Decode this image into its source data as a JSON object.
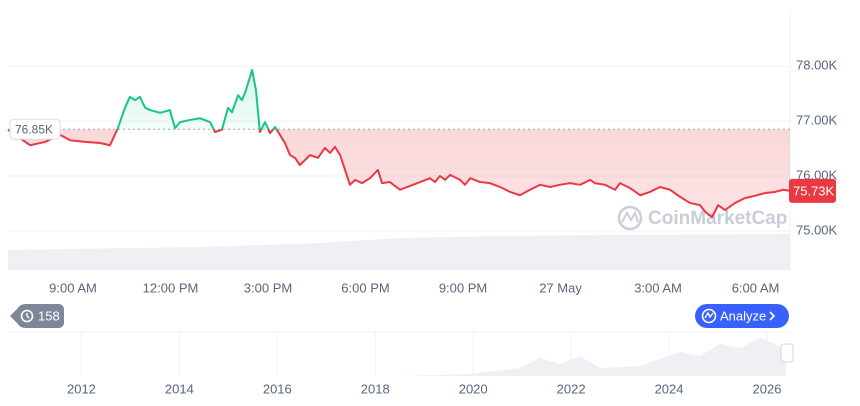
{
  "chart_data": {
    "type": "line",
    "x": [
      7.0,
      7.68,
      8.14,
      8.6,
      8.91,
      9.37,
      9.83,
      10.14,
      10.38,
      10.6,
      10.75,
      10.91,
      11.06,
      11.22,
      11.37,
      11.68,
      11.98,
      12.14,
      12.29,
      12.6,
      12.91,
      13.22,
      13.37,
      13.58,
      13.77,
      13.89,
      14.08,
      14.2,
      14.32,
      14.51,
      14.63,
      14.75,
      14.91,
      15.06,
      15.22,
      15.52,
      15.68,
      15.83,
      15.98,
      16.14,
      16.29,
      16.54,
      16.75,
      16.91,
      17.06,
      17.22,
      17.37,
      17.52,
      17.68,
      17.89,
      18.14,
      18.38,
      18.51,
      18.75,
      19.06,
      19.37,
      19.68,
      19.98,
      20.14,
      20.29,
      20.45,
      20.6,
      20.91,
      21.06,
      21.22,
      21.52,
      21.83,
      22.14,
      22.45,
      22.75,
      23.06,
      23.37,
      23.68,
      23.98,
      24.29,
      24.6,
      24.91,
      25.06,
      25.37,
      25.68,
      25.83,
      26.14,
      26.45,
      26.75,
      27.06,
      27.37,
      27.68,
      27.98,
      28.29,
      28.45,
      28.66,
      28.85,
      29.06,
      29.37,
      29.68,
      29.98,
      30.29,
      30.6,
      30.85,
      31.06
    ],
    "values": [
      76.84,
      76.56,
      76.62,
      76.75,
      76.65,
      76.62,
      76.6,
      76.56,
      76.87,
      77.24,
      77.44,
      77.38,
      77.44,
      77.24,
      77.2,
      77.15,
      77.2,
      76.87,
      76.98,
      77.02,
      77.05,
      76.98,
      76.8,
      76.84,
      77.24,
      77.16,
      77.47,
      77.38,
      77.56,
      77.93,
      77.56,
      76.8,
      76.98,
      76.78,
      76.89,
      76.6,
      76.38,
      76.33,
      76.2,
      76.29,
      76.38,
      76.33,
      76.51,
      76.42,
      76.53,
      76.38,
      76.11,
      75.84,
      75.93,
      75.87,
      75.96,
      76.11,
      75.87,
      75.89,
      75.75,
      75.82,
      75.89,
      75.96,
      75.89,
      76.0,
      75.93,
      76.02,
      75.93,
      75.84,
      75.96,
      75.89,
      75.87,
      75.8,
      75.71,
      75.65,
      75.75,
      75.84,
      75.8,
      75.84,
      75.87,
      75.84,
      75.93,
      75.87,
      75.84,
      75.75,
      75.87,
      75.78,
      75.65,
      75.71,
      75.8,
      75.75,
      75.62,
      75.51,
      75.47,
      75.35,
      75.25,
      75.47,
      75.38,
      75.51,
      75.6,
      75.64,
      75.69,
      75.71,
      75.75,
      75.73
    ],
    "color_up": "#16c784",
    "color_down": "#ea3943",
    "baseline": {
      "value": 76.85,
      "label": "76.85K"
    },
    "last_price": {
      "value": 75.73,
      "label": "75.73K"
    },
    "xlim": [
      7,
      31.06
    ],
    "xticks": [
      {
        "value": 9,
        "label": "9:00 AM"
      },
      {
        "value": 12,
        "label": "12:00 PM"
      },
      {
        "value": 15,
        "label": "3:00 PM"
      },
      {
        "value": 18,
        "label": "6:00 PM"
      },
      {
        "value": 21,
        "label": "9:00 PM"
      },
      {
        "value": 24,
        "label": "27 May"
      },
      {
        "value": 27,
        "label": "3:00 AM"
      },
      {
        "value": 30,
        "label": "6:00 AM"
      }
    ],
    "ylim": [
      74.29,
      79.02
    ],
    "yticks": [
      {
        "value": 75,
        "label": "75.00K"
      },
      {
        "value": 76,
        "label": "76.00K"
      },
      {
        "value": 77,
        "label": "77.00K"
      },
      {
        "value": 78,
        "label": "78.00K"
      }
    ],
    "grid": true
  },
  "watermark": "CoinMarketCap",
  "controls": {
    "history_count": "158",
    "analyze_button": "Analyze"
  },
  "navigator": {
    "xlim": [
      2010.5,
      2026.47
    ],
    "xticks": [
      2012,
      2014,
      2016,
      2018,
      2020,
      2022,
      2024,
      2026
    ]
  }
}
